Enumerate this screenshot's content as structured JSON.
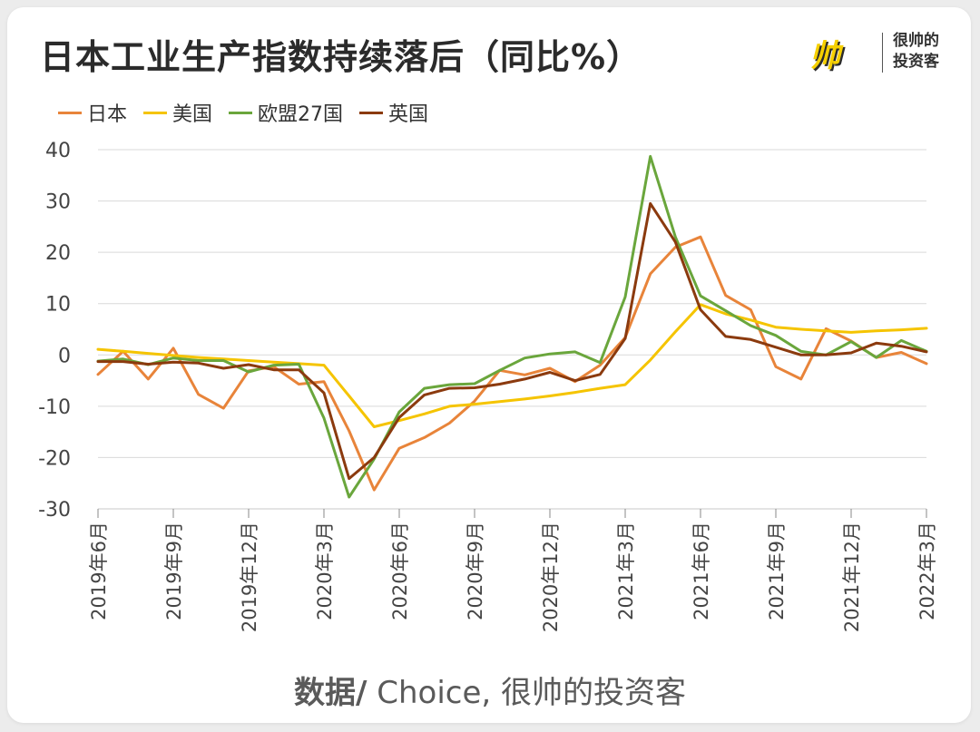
{
  "title": "日本工业生产指数持续落后（同比%）",
  "logo": {
    "mark": "帅",
    "line1": "很帅的",
    "line2": "投资客"
  },
  "source": {
    "label": "数据/",
    "text": " Choice, 很帅的投资客"
  },
  "chart_data": {
    "type": "line",
    "ylim": [
      -30,
      40
    ],
    "yticks": [
      40,
      30,
      20,
      10,
      0,
      -10,
      -20,
      -30
    ],
    "grid": true,
    "legend_position": "top-left",
    "x": [
      "2019年6月",
      "2019年7月",
      "2019年8月",
      "2019年9月",
      "2019年10月",
      "2019年11月",
      "2019年12月",
      "2020年1月",
      "2020年2月",
      "2020年3月",
      "2020年4月",
      "2020年5月",
      "2020年6月",
      "2020年7月",
      "2020年8月",
      "2020年9月",
      "2020年10月",
      "2020年11月",
      "2020年12月",
      "2021年1月",
      "2021年2月",
      "2021年3月",
      "2021年4月",
      "2021年5月",
      "2021年6月",
      "2021年7月",
      "2021年8月",
      "2021年9月",
      "2021年10月",
      "2021年11月",
      "2021年12月",
      "2022年1月",
      "2022年2月",
      "2022年3月"
    ],
    "xtick_labels": [
      "2019年6月",
      "2019年9月",
      "2019年12月",
      "2020年3月",
      "2020年6月",
      "2020年9月",
      "2020年12月",
      "2021年3月",
      "2021年6月",
      "2021年9月",
      "2021年12月",
      "2022年3月"
    ],
    "xtick_index": [
      0,
      3,
      6,
      9,
      12,
      15,
      18,
      21,
      24,
      27,
      30,
      33
    ],
    "series": [
      {
        "name": "日本",
        "color": "#e8843a",
        "values": [
          -3.8,
          0.7,
          -4.7,
          1.3,
          -7.7,
          -10.4,
          -3.1,
          -2.3,
          -5.7,
          -5.2,
          -14.8,
          -26.3,
          -18.2,
          -16.1,
          -13.3,
          -9.0,
          -3.0,
          -3.9,
          -2.6,
          -5.2,
          -2.0,
          3.4,
          15.8,
          21.0,
          23.0,
          11.6,
          8.8,
          -2.3,
          -4.7,
          5.1,
          2.7,
          -0.5,
          0.5,
          -1.7
        ]
      },
      {
        "name": "美国",
        "color": "#f5c400",
        "values": [
          1.1,
          0.7,
          0.3,
          -0.1,
          -0.5,
          -0.8,
          -1.1,
          -1.4,
          -1.7,
          -2.0,
          -8.0,
          -14.0,
          -12.8,
          -11.5,
          -10.0,
          -9.6,
          -9.1,
          -8.6,
          -8.0,
          -7.3,
          -6.5,
          -5.8,
          -1.0,
          4.5,
          9.8,
          8.0,
          6.8,
          5.4,
          5.0,
          4.7,
          4.4,
          4.7,
          4.9,
          5.2
        ]
      },
      {
        "name": "欧盟27国",
        "color": "#6aa63c",
        "values": [
          -1.2,
          -0.8,
          -1.9,
          -0.6,
          -1.1,
          -1.1,
          -3.3,
          -2.0,
          -1.8,
          -12.3,
          -27.7,
          -20.3,
          -11.1,
          -6.5,
          -5.8,
          -5.6,
          -3.0,
          -0.6,
          0.2,
          0.6,
          -1.5,
          11.3,
          38.7,
          23.0,
          11.5,
          8.6,
          5.7,
          3.8,
          0.7,
          0.0,
          2.6,
          -0.5,
          2.8,
          0.7
        ]
      },
      {
        "name": "英国",
        "color": "#8b3a0e",
        "values": [
          -1.3,
          -1.3,
          -1.8,
          -1.4,
          -1.6,
          -2.6,
          -1.9,
          -2.9,
          -2.9,
          -7.4,
          -24.1,
          -20.0,
          -12.2,
          -7.8,
          -6.5,
          -6.4,
          -5.7,
          -4.7,
          -3.4,
          -5.0,
          -3.8,
          3.2,
          29.5,
          22.0,
          8.8,
          3.6,
          3.0,
          1.5,
          0.0,
          0.0,
          0.4,
          2.3,
          1.7,
          0.6
        ]
      }
    ]
  }
}
